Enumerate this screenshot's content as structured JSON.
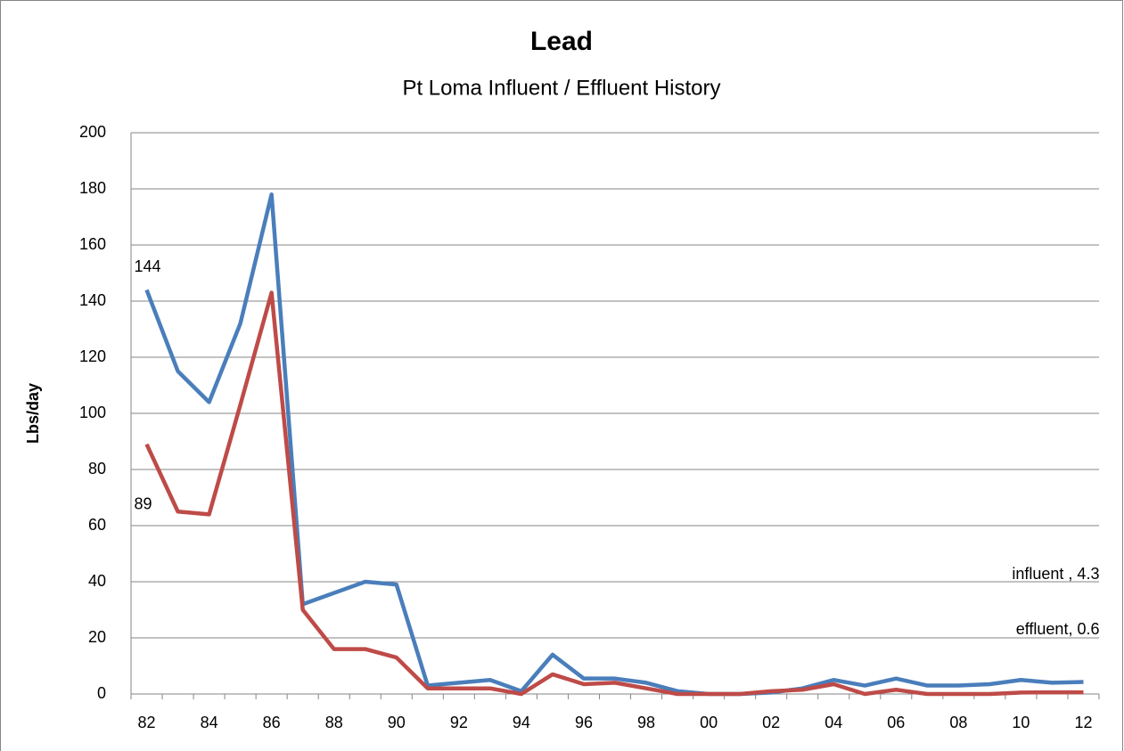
{
  "chart_data": {
    "type": "line",
    "title": "Lead",
    "subtitle": "Pt Loma Influent / Effluent History",
    "y_label": "Lbs/day",
    "categories": [
      "82",
      null,
      "84",
      null,
      "86",
      null,
      "88",
      null,
      "90",
      null,
      "92",
      null,
      "94",
      null,
      "96",
      null,
      "98",
      null,
      "00",
      null,
      "02",
      null,
      "04",
      null,
      "06",
      null,
      "08",
      null,
      "10",
      null,
      "12"
    ],
    "series": [
      {
        "name": "influent",
        "color": "#4a7ebb",
        "values": [
          144,
          115,
          104,
          132,
          178,
          32,
          36,
          40,
          39,
          3,
          4,
          5,
          1,
          14,
          5.5,
          5.5,
          4,
          1,
          0,
          0,
          0.5,
          2,
          5,
          3,
          5.5,
          3,
          3,
          3.5,
          5,
          4,
          4.3
        ],
        "value_labels": [
          "144",
          null,
          null,
          null,
          null,
          null,
          null,
          null,
          null,
          null,
          null,
          null,
          null,
          null,
          null,
          null,
          null,
          null,
          null,
          null,
          null,
          null,
          null,
          null,
          null,
          null,
          null,
          null,
          null,
          null,
          "influent , 4.3"
        ]
      },
      {
        "name": "effluent",
        "color": "#be4b48",
        "values": [
          89,
          65,
          64,
          103,
          143,
          30,
          16,
          16,
          13,
          2,
          2,
          2,
          0,
          7,
          3.5,
          4,
          2,
          0,
          0,
          0,
          1,
          1.5,
          3.5,
          0,
          1.5,
          0,
          0,
          0,
          0.5,
          0.6,
          0.6
        ],
        "value_labels": [
          "89",
          null,
          null,
          null,
          null,
          null,
          null,
          null,
          null,
          null,
          null,
          null,
          null,
          null,
          null,
          null,
          null,
          null,
          null,
          null,
          null,
          null,
          null,
          null,
          null,
          null,
          null,
          null,
          null,
          null,
          "effluent, 0.6"
        ]
      }
    ],
    "ylim": [
      0,
      200
    ],
    "yticks": [
      0,
      20,
      40,
      60,
      80,
      100,
      120,
      140,
      160,
      180,
      200
    ],
    "grid": true
  }
}
